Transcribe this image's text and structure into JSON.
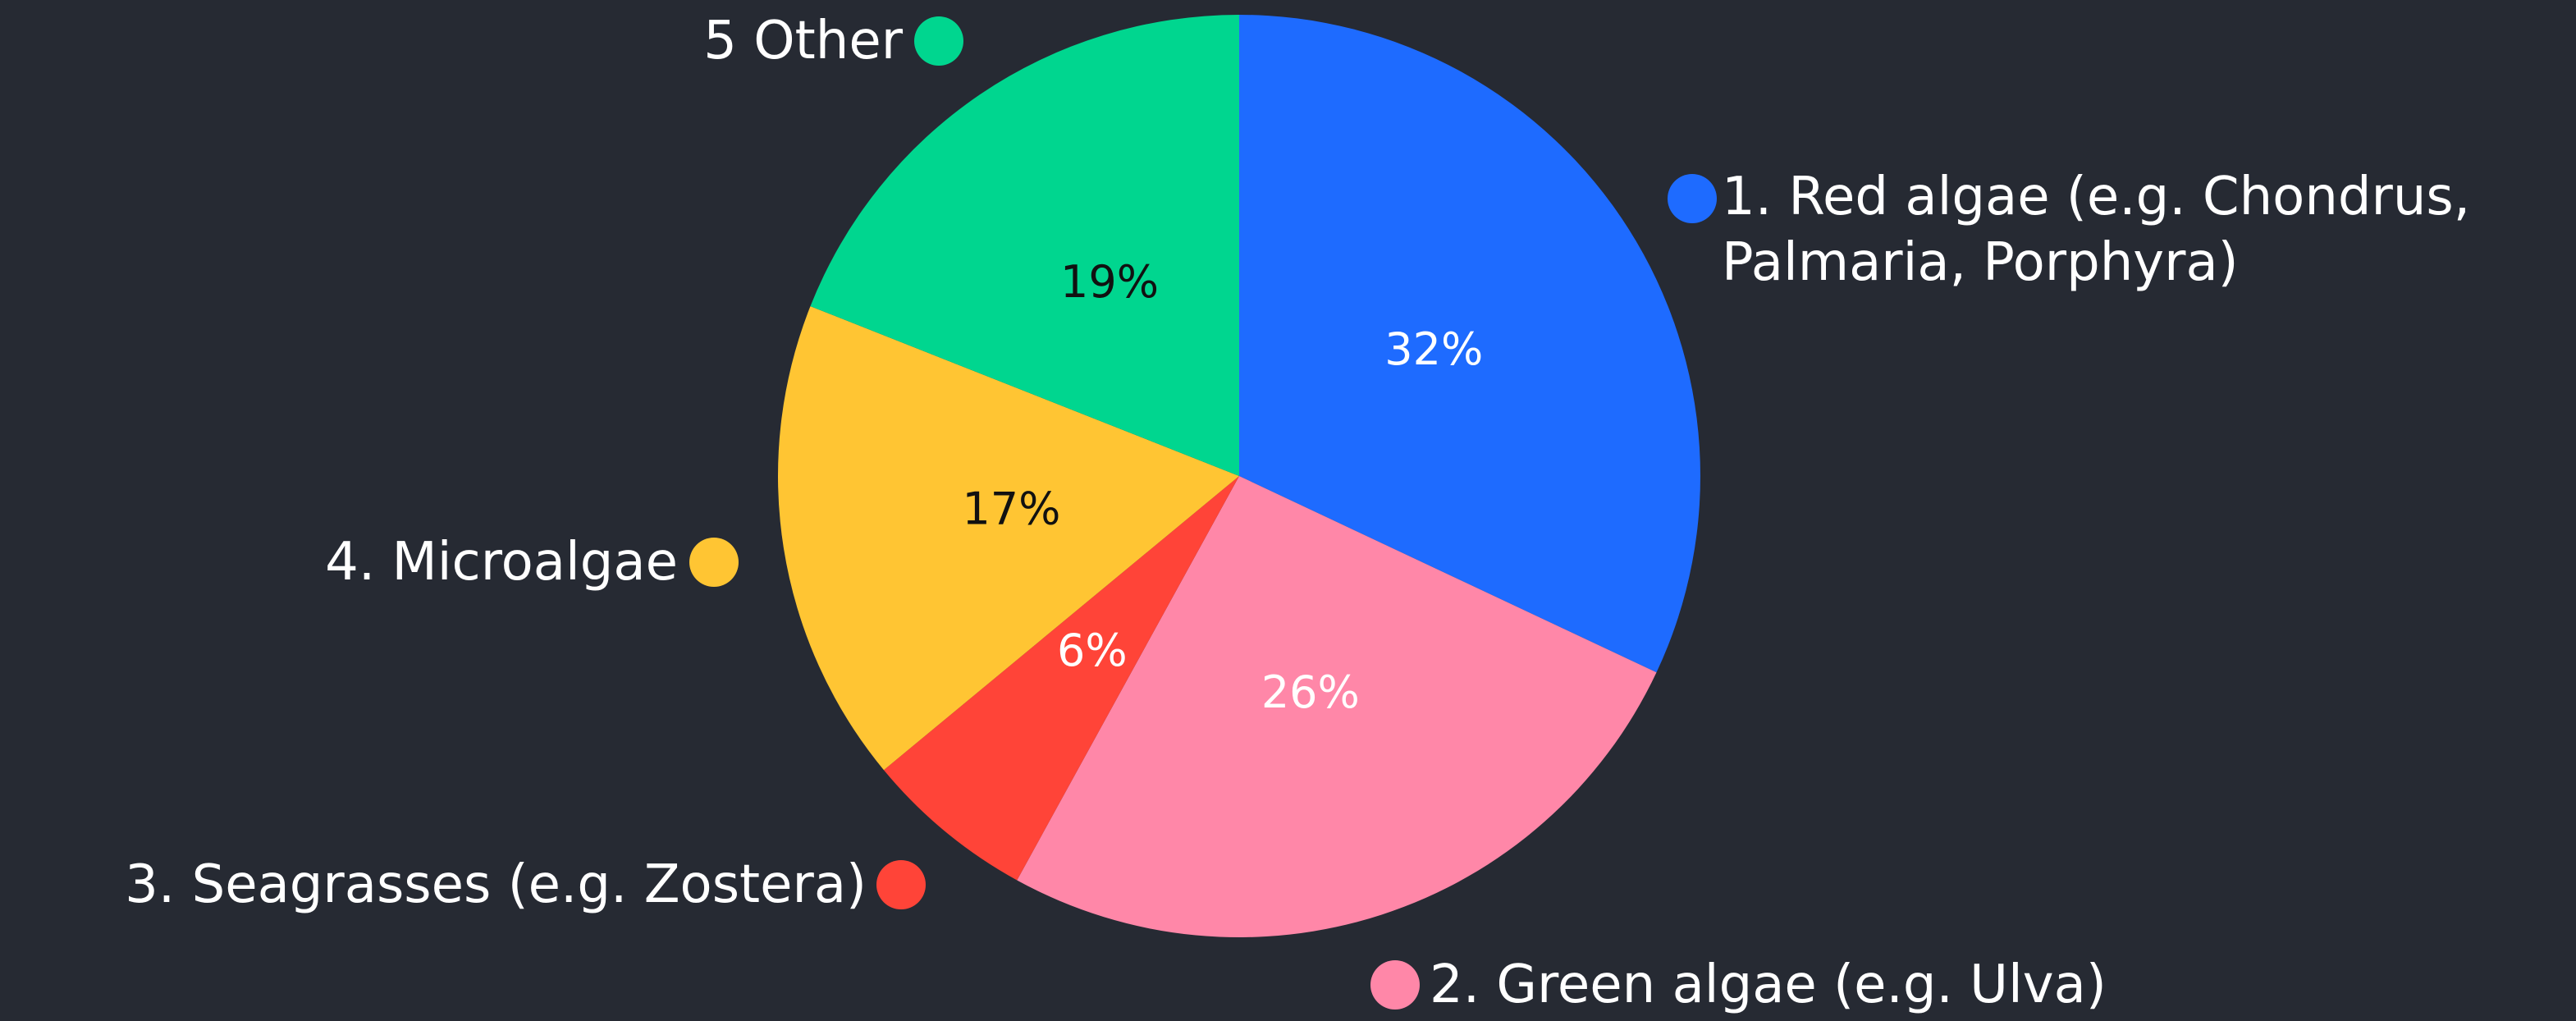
{
  "chart_data": {
    "type": "pie",
    "categories": [
      "1. Red algae (e.g. Chondrus, Palmaria, Porphyra)",
      "2. Green algae (e.g. Ulva)",
      "3. Seagrasses (e.g. Zostera)",
      "4. Microalgae",
      "5 Other"
    ],
    "values": [
      32,
      26,
      6,
      17,
      19
    ],
    "value_labels": [
      "32%",
      "26%",
      "6%",
      "17%",
      "19%"
    ],
    "colors": [
      "#1e6bff",
      "#ff87a8",
      "#ff4438",
      "#ffc533",
      "#00d68f"
    ],
    "label_colors": [
      "#ffffff",
      "#ffffff",
      "#ffffff",
      "#111111",
      "#111111"
    ]
  }
}
